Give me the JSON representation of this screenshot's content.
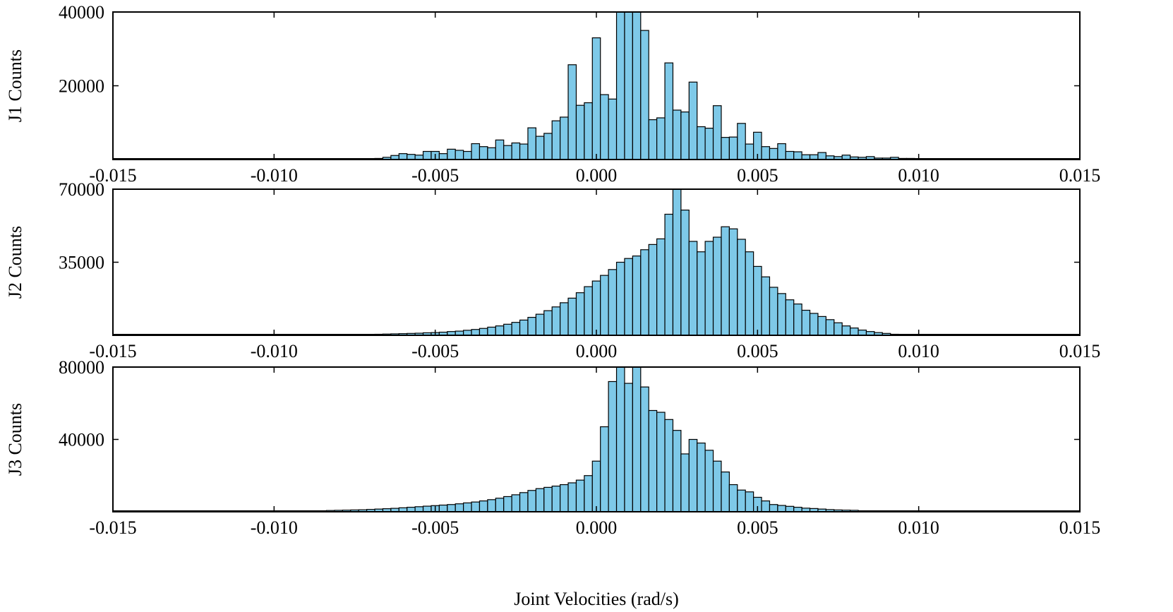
{
  "chart_data": [
    {
      "type": "bar",
      "name": "j1",
      "ylabel": "J1 Counts",
      "xlabel": "",
      "xlim": [
        -0.015,
        0.015
      ],
      "ylim": [
        0,
        40000
      ],
      "bin_width": 0.00025,
      "xticks": [
        "-0.015",
        "-0.010",
        "-0.005",
        "0.000",
        "0.005",
        "0.010",
        "0.015"
      ],
      "yticks": [
        "20000",
        "40000"
      ],
      "bars": [
        {
          "x": -0.00675,
          "count": 300
        },
        {
          "x": -0.0065,
          "count": 600
        },
        {
          "x": -0.00625,
          "count": 1100
        },
        {
          "x": -0.006,
          "count": 1600
        },
        {
          "x": -0.00575,
          "count": 1400
        },
        {
          "x": -0.0055,
          "count": 1200
        },
        {
          "x": -0.00525,
          "count": 2200
        },
        {
          "x": -0.005,
          "count": 2200
        },
        {
          "x": -0.00475,
          "count": 1600
        },
        {
          "x": -0.0045,
          "count": 2800
        },
        {
          "x": -0.00425,
          "count": 2500
        },
        {
          "x": -0.004,
          "count": 2200
        },
        {
          "x": -0.00375,
          "count": 4300
        },
        {
          "x": -0.0035,
          "count": 3500
        },
        {
          "x": -0.00325,
          "count": 3200
        },
        {
          "x": -0.003,
          "count": 5300
        },
        {
          "x": -0.00275,
          "count": 3800
        },
        {
          "x": -0.0025,
          "count": 4500
        },
        {
          "x": -0.00225,
          "count": 4200
        },
        {
          "x": -0.002,
          "count": 8600
        },
        {
          "x": -0.00175,
          "count": 6300
        },
        {
          "x": -0.0015,
          "count": 7100
        },
        {
          "x": -0.00125,
          "count": 10500
        },
        {
          "x": -0.001,
          "count": 11500
        },
        {
          "x": -0.00075,
          "count": 25700
        },
        {
          "x": -0.0005,
          "count": 14700
        },
        {
          "x": -0.00025,
          "count": 15400
        },
        {
          "x": 0.0,
          "count": 33000
        },
        {
          "x": 0.00025,
          "count": 17600
        },
        {
          "x": 0.0005,
          "count": 16400
        },
        {
          "x": 0.00075,
          "count": 40000
        },
        {
          "x": 0.001,
          "count": 40000
        },
        {
          "x": 0.00125,
          "count": 40000
        },
        {
          "x": 0.0015,
          "count": 35000
        },
        {
          "x": 0.00175,
          "count": 10800
        },
        {
          "x": 0.002,
          "count": 11300
        },
        {
          "x": 0.00225,
          "count": 26200
        },
        {
          "x": 0.0025,
          "count": 13400
        },
        {
          "x": 0.00275,
          "count": 12900
        },
        {
          "x": 0.003,
          "count": 21000
        },
        {
          "x": 0.00325,
          "count": 8900
        },
        {
          "x": 0.0035,
          "count": 8500
        },
        {
          "x": 0.00375,
          "count": 14600
        },
        {
          "x": 0.004,
          "count": 6000
        },
        {
          "x": 0.00425,
          "count": 6100
        },
        {
          "x": 0.0045,
          "count": 9800
        },
        {
          "x": 0.00475,
          "count": 4200
        },
        {
          "x": 0.005,
          "count": 7400
        },
        {
          "x": 0.00525,
          "count": 3500
        },
        {
          "x": 0.0055,
          "count": 3000
        },
        {
          "x": 0.00575,
          "count": 4300
        },
        {
          "x": 0.006,
          "count": 2200
        },
        {
          "x": 0.00625,
          "count": 2100
        },
        {
          "x": 0.0065,
          "count": 1300
        },
        {
          "x": 0.00675,
          "count": 1300
        },
        {
          "x": 0.007,
          "count": 1900
        },
        {
          "x": 0.00725,
          "count": 1000
        },
        {
          "x": 0.0075,
          "count": 800
        },
        {
          "x": 0.00775,
          "count": 1200
        },
        {
          "x": 0.008,
          "count": 700
        },
        {
          "x": 0.00825,
          "count": 600
        },
        {
          "x": 0.0085,
          "count": 800
        },
        {
          "x": 0.00875,
          "count": 400
        },
        {
          "x": 0.009,
          "count": 400
        },
        {
          "x": 0.00925,
          "count": 600
        },
        {
          "x": 0.0095,
          "count": 300
        },
        {
          "x": 0.00975,
          "count": 300
        }
      ]
    },
    {
      "type": "bar",
      "name": "j2",
      "ylabel": "J2 Counts",
      "xlabel": "",
      "xlim": [
        -0.015,
        0.015
      ],
      "ylim": [
        0,
        70000
      ],
      "bin_width": 0.00025,
      "xticks": [
        "-0.015",
        "-0.010",
        "-0.005",
        "0.000",
        "0.005",
        "0.010",
        "0.015"
      ],
      "yticks": [
        "35000",
        "70000"
      ],
      "bars": [
        {
          "x": -0.00675,
          "count": 500
        },
        {
          "x": -0.0065,
          "count": 600
        },
        {
          "x": -0.00625,
          "count": 700
        },
        {
          "x": -0.006,
          "count": 800
        },
        {
          "x": -0.00575,
          "count": 900
        },
        {
          "x": -0.0055,
          "count": 1000
        },
        {
          "x": -0.00525,
          "count": 1200
        },
        {
          "x": -0.005,
          "count": 1300
        },
        {
          "x": -0.00475,
          "count": 1500
        },
        {
          "x": -0.0045,
          "count": 1800
        },
        {
          "x": -0.00425,
          "count": 2000
        },
        {
          "x": -0.004,
          "count": 2400
        },
        {
          "x": -0.00375,
          "count": 2800
        },
        {
          "x": -0.0035,
          "count": 3300
        },
        {
          "x": -0.00325,
          "count": 3900
        },
        {
          "x": -0.003,
          "count": 4500
        },
        {
          "x": -0.00275,
          "count": 5300
        },
        {
          "x": -0.0025,
          "count": 6200
        },
        {
          "x": -0.00225,
          "count": 7300
        },
        {
          "x": -0.002,
          "count": 8600
        },
        {
          "x": -0.00175,
          "count": 10100
        },
        {
          "x": -0.0015,
          "count": 11800
        },
        {
          "x": -0.00125,
          "count": 13600
        },
        {
          "x": -0.001,
          "count": 15600
        },
        {
          "x": -0.00075,
          "count": 17800
        },
        {
          "x": -0.0005,
          "count": 20400
        },
        {
          "x": -0.00025,
          "count": 23300
        },
        {
          "x": 0.0,
          "count": 26000
        },
        {
          "x": 0.00025,
          "count": 28700
        },
        {
          "x": 0.0005,
          "count": 31500
        },
        {
          "x": 0.00075,
          "count": 35000
        },
        {
          "x": 0.001,
          "count": 36800
        },
        {
          "x": 0.00125,
          "count": 38000
        },
        {
          "x": 0.0015,
          "count": 41000
        },
        {
          "x": 0.00175,
          "count": 43500
        },
        {
          "x": 0.002,
          "count": 46200
        },
        {
          "x": 0.00225,
          "count": 58000
        },
        {
          "x": 0.0025,
          "count": 70000
        },
        {
          "x": 0.00275,
          "count": 60000
        },
        {
          "x": 0.003,
          "count": 45000
        },
        {
          "x": 0.00325,
          "count": 40000
        },
        {
          "x": 0.0035,
          "count": 45000
        },
        {
          "x": 0.00375,
          "count": 47000
        },
        {
          "x": 0.004,
          "count": 52000
        },
        {
          "x": 0.00425,
          "count": 51000
        },
        {
          "x": 0.0045,
          "count": 46000
        },
        {
          "x": 0.00475,
          "count": 40000
        },
        {
          "x": 0.005,
          "count": 33000
        },
        {
          "x": 0.00525,
          "count": 28000
        },
        {
          "x": 0.0055,
          "count": 23000
        },
        {
          "x": 0.00575,
          "count": 20000
        },
        {
          "x": 0.006,
          "count": 17000
        },
        {
          "x": 0.00625,
          "count": 15000
        },
        {
          "x": 0.0065,
          "count": 12000
        },
        {
          "x": 0.00675,
          "count": 10500
        },
        {
          "x": 0.007,
          "count": 9000
        },
        {
          "x": 0.00725,
          "count": 7500
        },
        {
          "x": 0.0075,
          "count": 6000
        },
        {
          "x": 0.00775,
          "count": 4500
        },
        {
          "x": 0.008,
          "count": 3500
        },
        {
          "x": 0.00825,
          "count": 2500
        },
        {
          "x": 0.0085,
          "count": 1800
        },
        {
          "x": 0.00875,
          "count": 1300
        },
        {
          "x": 0.009,
          "count": 900
        },
        {
          "x": 0.00925,
          "count": 500
        }
      ]
    },
    {
      "type": "bar",
      "name": "j3",
      "ylabel": "J3 Counts",
      "xlabel": "Joint Velocities (rad/s)",
      "xlim": [
        -0.015,
        0.015
      ],
      "ylim": [
        0,
        80000
      ],
      "bin_width": 0.00025,
      "xticks": [
        "-0.015",
        "-0.010",
        "-0.005",
        "0.000",
        "0.005",
        "0.010",
        "0.015"
      ],
      "yticks": [
        "40000",
        "80000"
      ],
      "bars": [
        {
          "x": -0.00825,
          "count": 700
        },
        {
          "x": -0.008,
          "count": 800
        },
        {
          "x": -0.00775,
          "count": 900
        },
        {
          "x": -0.0075,
          "count": 1000
        },
        {
          "x": -0.00725,
          "count": 1100
        },
        {
          "x": -0.007,
          "count": 1300
        },
        {
          "x": -0.00675,
          "count": 1500
        },
        {
          "x": -0.0065,
          "count": 1700
        },
        {
          "x": -0.00625,
          "count": 1900
        },
        {
          "x": -0.006,
          "count": 2200
        },
        {
          "x": -0.00575,
          "count": 2500
        },
        {
          "x": -0.0055,
          "count": 2800
        },
        {
          "x": -0.00525,
          "count": 3100
        },
        {
          "x": -0.005,
          "count": 3400
        },
        {
          "x": -0.00475,
          "count": 3700
        },
        {
          "x": -0.0045,
          "count": 4000
        },
        {
          "x": -0.00425,
          "count": 4400
        },
        {
          "x": -0.004,
          "count": 4900
        },
        {
          "x": -0.00375,
          "count": 5400
        },
        {
          "x": -0.0035,
          "count": 6000
        },
        {
          "x": -0.00325,
          "count": 6700
        },
        {
          "x": -0.003,
          "count": 7500
        },
        {
          "x": -0.00275,
          "count": 8400
        },
        {
          "x": -0.0025,
          "count": 9400
        },
        {
          "x": -0.00225,
          "count": 10600
        },
        {
          "x": -0.002,
          "count": 11800
        },
        {
          "x": -0.00175,
          "count": 12800
        },
        {
          "x": -0.0015,
          "count": 13500
        },
        {
          "x": -0.00125,
          "count": 14200
        },
        {
          "x": -0.001,
          "count": 15000
        },
        {
          "x": -0.00075,
          "count": 16000
        },
        {
          "x": -0.0005,
          "count": 17500
        },
        {
          "x": -0.00025,
          "count": 20000
        },
        {
          "x": 0.0,
          "count": 28000
        },
        {
          "x": 0.00025,
          "count": 47000
        },
        {
          "x": 0.0005,
          "count": 72000
        },
        {
          "x": 0.00075,
          "count": 80000
        },
        {
          "x": 0.001,
          "count": 71000
        },
        {
          "x": 0.00125,
          "count": 80000
        },
        {
          "x": 0.0015,
          "count": 69000
        },
        {
          "x": 0.00175,
          "count": 56000
        },
        {
          "x": 0.002,
          "count": 55000
        },
        {
          "x": 0.00225,
          "count": 51000
        },
        {
          "x": 0.0025,
          "count": 45000
        },
        {
          "x": 0.00275,
          "count": 32000
        },
        {
          "x": 0.003,
          "count": 40000
        },
        {
          "x": 0.00325,
          "count": 38000
        },
        {
          "x": 0.0035,
          "count": 34000
        },
        {
          "x": 0.00375,
          "count": 28000
        },
        {
          "x": 0.004,
          "count": 22000
        },
        {
          "x": 0.00425,
          "count": 15000
        },
        {
          "x": 0.0045,
          "count": 12000
        },
        {
          "x": 0.00475,
          "count": 11000
        },
        {
          "x": 0.005,
          "count": 8000
        },
        {
          "x": 0.00525,
          "count": 6000
        },
        {
          "x": 0.0055,
          "count": 4000
        },
        {
          "x": 0.00575,
          "count": 3500
        },
        {
          "x": 0.006,
          "count": 3000
        },
        {
          "x": 0.00625,
          "count": 2500
        },
        {
          "x": 0.0065,
          "count": 2000
        },
        {
          "x": 0.00675,
          "count": 1800
        },
        {
          "x": 0.007,
          "count": 1500
        },
        {
          "x": 0.00725,
          "count": 1200
        },
        {
          "x": 0.0075,
          "count": 1000
        },
        {
          "x": 0.00775,
          "count": 900
        },
        {
          "x": 0.008,
          "count": 800
        }
      ]
    }
  ],
  "colors": {
    "bar_fill": "#7ec9e8",
    "bar_stroke": "#000000"
  }
}
